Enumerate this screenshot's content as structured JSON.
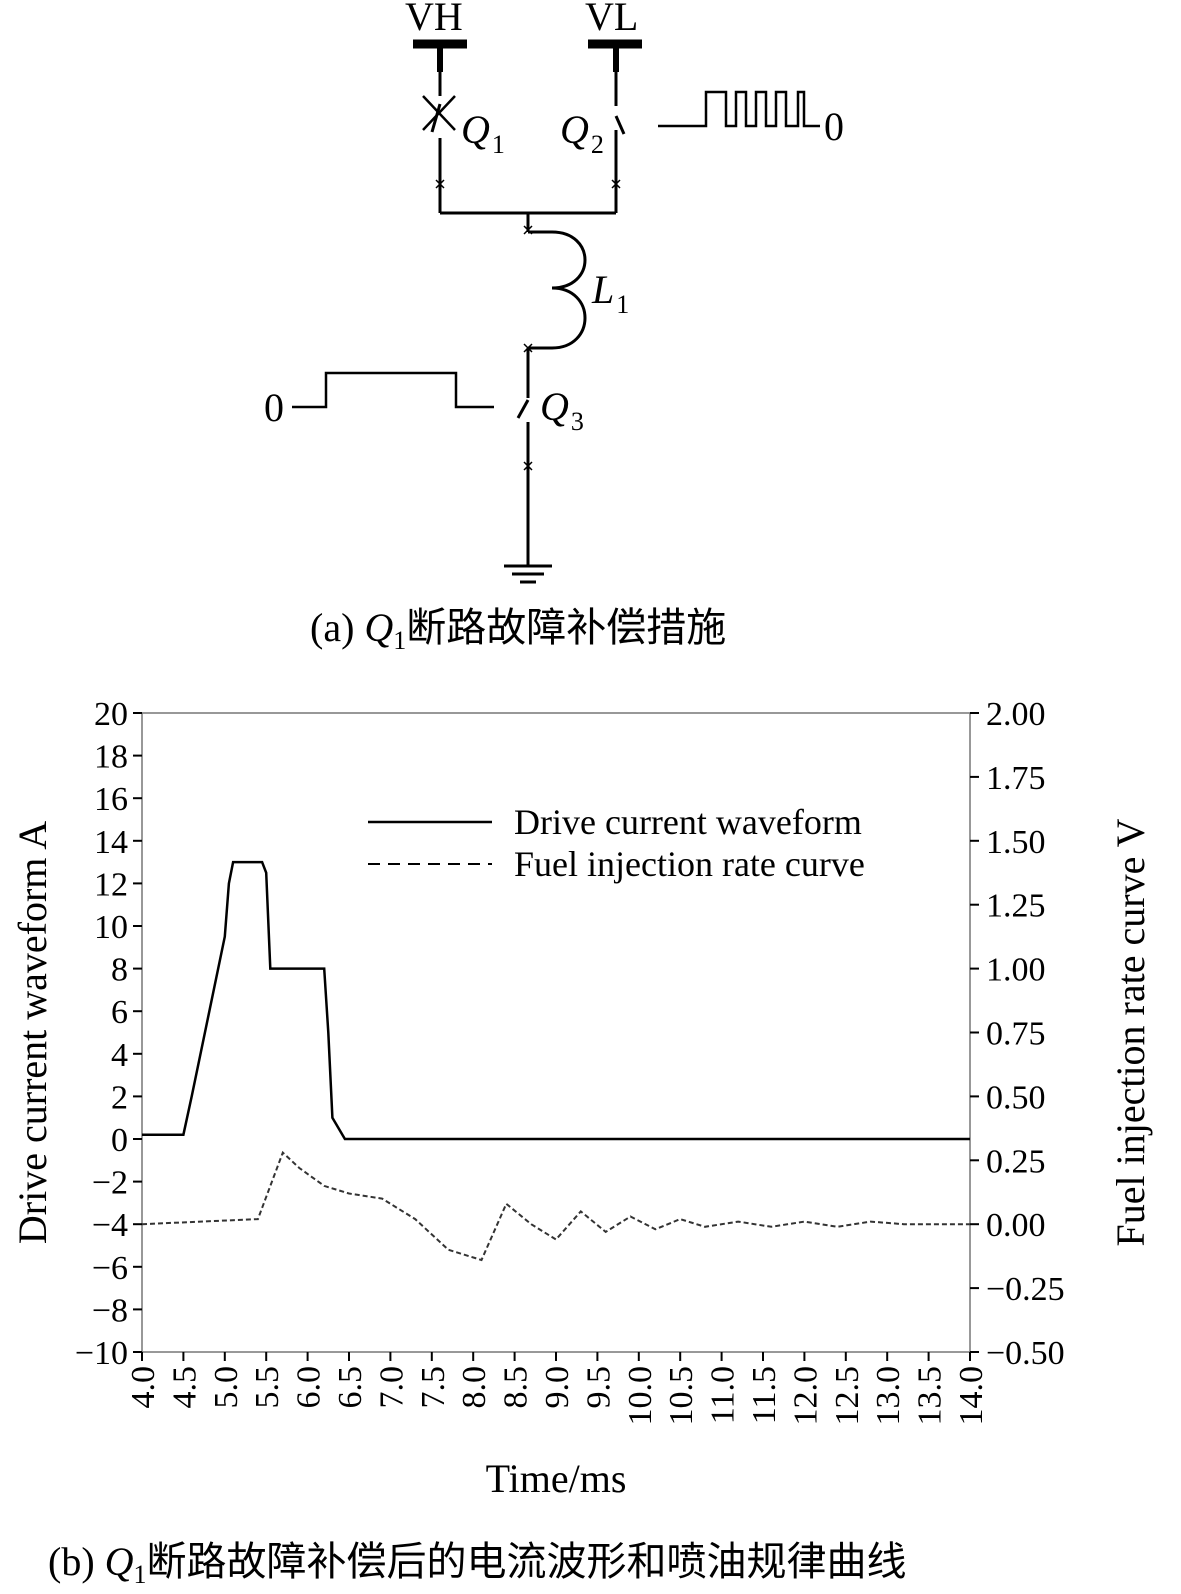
{
  "circuit": {
    "vh_label": "VH",
    "vl_label": "VL",
    "q1": {
      "letter": "Q",
      "sub": "1"
    },
    "q2": {
      "letter": "Q",
      "sub": "2"
    },
    "q3": {
      "letter": "Q",
      "sub": "3"
    },
    "l1": {
      "letter": "L",
      "sub": "1"
    },
    "pulse_right_zero": "0",
    "pulse_left_zero": "0",
    "caption": {
      "prefix": "(a) ",
      "q": "Q",
      "sub": "1",
      "text": "断路故障补偿措施"
    }
  },
  "figure_b_caption": {
    "prefix": "(b) ",
    "q": "Q",
    "sub": "1",
    "text": "断路故障补偿后的电流波形和喷油规律曲线"
  },
  "chart_data": {
    "type": "line",
    "xlabel": "Time/ms",
    "ylabel": "Drive current waveform A",
    "y2label": "Fuel injection rate curve V",
    "xlim": [
      4.0,
      14.0
    ],
    "ylim": [
      -10,
      20
    ],
    "y2lim": [
      -0.5,
      2.0
    ],
    "x_ticks": [
      "4.0",
      "4.5",
      "5.0",
      "5.5",
      "6.0",
      "6.5",
      "7.0",
      "7.5",
      "8.0",
      "8.5",
      "9.0",
      "9.5",
      "10.0",
      "10.5",
      "11.0",
      "11.5",
      "12.0",
      "12.5",
      "13.0",
      "13.5",
      "14.0"
    ],
    "y_ticks": [
      "20",
      "18",
      "16",
      "14",
      "12",
      "10",
      "8",
      "6",
      "4",
      "2",
      "0",
      "−2",
      "−4",
      "−6",
      "−8",
      "−10"
    ],
    "y2_ticks": [
      "2.00",
      "1.75",
      "1.50",
      "1.25",
      "1.00",
      "0.75",
      "0.50",
      "0.25",
      "0.00",
      "−0.25",
      "−0.50"
    ],
    "legend_position": "top-right",
    "grid": false,
    "series": [
      {
        "name": "Drive current waveform",
        "axis": "left",
        "style": "solid",
        "x": [
          4.0,
          4.5,
          4.6,
          5.0,
          5.05,
          5.1,
          5.45,
          5.5,
          5.55,
          6.2,
          6.25,
          6.3,
          6.45,
          14.0
        ],
        "y": [
          0.2,
          0.2,
          2.0,
          9.5,
          12.0,
          13.0,
          13.0,
          12.5,
          8.0,
          8.0,
          5.0,
          1.0,
          0.0,
          0.0
        ]
      },
      {
        "name": "Fuel injection rate curve",
        "axis": "right",
        "style": "dashed",
        "x": [
          4.0,
          5.4,
          5.7,
          5.9,
          6.2,
          6.5,
          6.9,
          7.3,
          7.7,
          8.1,
          8.4,
          8.7,
          9.0,
          9.3,
          9.6,
          9.9,
          10.2,
          10.5,
          10.8,
          11.2,
          11.6,
          12.0,
          12.4,
          12.8,
          13.2,
          13.6,
          14.0
        ],
        "y": [
          0.0,
          0.02,
          0.28,
          0.22,
          0.15,
          0.12,
          0.1,
          0.02,
          -0.1,
          -0.14,
          0.08,
          0.0,
          -0.06,
          0.05,
          -0.03,
          0.03,
          -0.02,
          0.02,
          -0.01,
          0.01,
          -0.01,
          0.01,
          -0.01,
          0.01,
          0.0,
          0.0,
          0.0
        ]
      }
    ]
  }
}
